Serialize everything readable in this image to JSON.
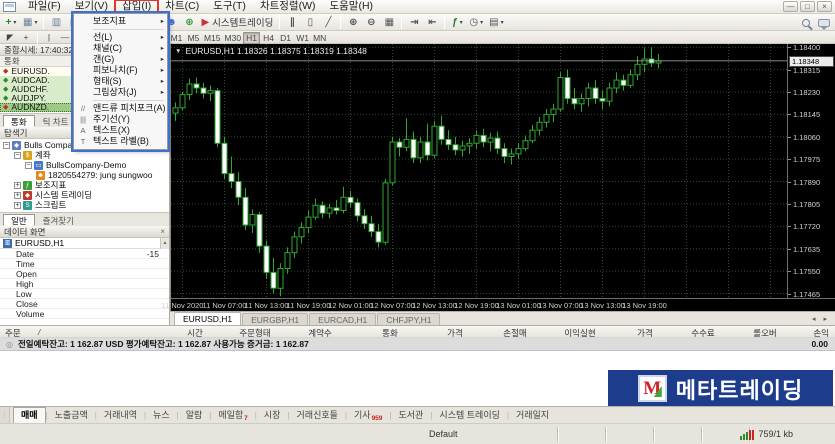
{
  "menu": {
    "items": [
      "파일(F)",
      "보기(V)",
      "삽입(I)",
      "차트(C)",
      "도구(T)",
      "차트정렬(W)",
      "도움말(H)"
    ],
    "annotated_item": 2,
    "window_controls": [
      "—",
      "□",
      "×"
    ]
  },
  "toolbar": {
    "left_icons": [
      {
        "name": "new-chart-button",
        "glyph": "+",
        "color": "#1f8f1f",
        "dd": true
      },
      {
        "name": "profiles-button",
        "glyph": "▦",
        "color": "#6b7f9e",
        "dd": true
      },
      {
        "sep": true
      },
      {
        "name": "market-watch-button",
        "glyph": "▥",
        "color": "#6b7f9e"
      },
      {
        "name": "data-window-button",
        "glyph": "◫",
        "color": "#6b7f9e"
      },
      {
        "name": "navigator-button",
        "glyph": "▤",
        "color": "#6b7f9e"
      },
      {
        "name": "terminal-button",
        "glyph": "▭",
        "color": "#6b7f9e"
      },
      {
        "name": "strategy-tester-button",
        "glyph": "▣",
        "color": "#6b7f9e"
      },
      {
        "name": "new-order-button",
        "glyph": "◆",
        "color": "#e8a01a"
      },
      {
        "sep": true
      },
      {
        "name": "expert-advisors-button",
        "glyph": "☻",
        "color": "#3b6fd4"
      },
      {
        "name": "web-terminal-button",
        "glyph": "⊕",
        "color": "#3a9e3a"
      },
      {
        "name": "autotrading-button",
        "glyph": "▶",
        "color": "#cc3333",
        "label": "시스템트레이딩"
      },
      {
        "sep": true
      },
      {
        "name": "bar-chart-button",
        "glyph": "∥",
        "color": "#555555"
      },
      {
        "name": "candlestick-button",
        "glyph": "▯",
        "color": "#555555"
      },
      {
        "name": "line-chart-button",
        "glyph": "╱",
        "color": "#555555"
      },
      {
        "sep": true
      },
      {
        "name": "zoom-in-button",
        "glyph": "⊕",
        "color": "#555555"
      },
      {
        "name": "zoom-out-button",
        "glyph": "⊖",
        "color": "#555555"
      },
      {
        "name": "tile-windows-button",
        "glyph": "▦",
        "color": "#555555"
      },
      {
        "sep": true
      },
      {
        "name": "auto-scroll-button",
        "glyph": "⇥",
        "color": "#555555"
      },
      {
        "name": "chart-shift-button",
        "glyph": "⇤",
        "color": "#555555"
      },
      {
        "sep": true
      },
      {
        "name": "indicators-button",
        "glyph": "ƒ",
        "color": "#2e7d32",
        "dd": true
      },
      {
        "name": "periods-button",
        "glyph": "◷",
        "color": "#555555",
        "dd": true
      },
      {
        "name": "templates-button",
        "glyph": "▤",
        "color": "#555555",
        "dd": true
      }
    ]
  },
  "line_tools": [
    {
      "name": "cursor-tool-button",
      "glyph": "◤"
    },
    {
      "name": "crosshair-tool-button",
      "glyph": "+"
    },
    {
      "sep": true
    },
    {
      "name": "vertical-line-button",
      "glyph": "|"
    },
    {
      "name": "horizontal-line-button",
      "glyph": "—"
    },
    {
      "name": "trendline-button",
      "glyph": "╱"
    },
    {
      "name": "channel-button",
      "glyph": "∥"
    }
  ],
  "timeframes": {
    "buttons": [
      "M1",
      "M5",
      "M15",
      "M30",
      "H1",
      "H4",
      "D1",
      "W1",
      "MN"
    ],
    "active": "H1"
  },
  "insert_menu": {
    "items": [
      {
        "label": "보조지표",
        "submenu": true
      },
      {
        "sep": true
      },
      {
        "label": "선(L)",
        "submenu": true
      },
      {
        "label": "채널(C)",
        "submenu": true
      },
      {
        "label": "갠(G)",
        "submenu": true
      },
      {
        "label": "피보나치(F)",
        "submenu": true
      },
      {
        "label": "형태(S)",
        "submenu": true
      },
      {
        "label": "그림상자(J)",
        "submenu": true
      },
      {
        "sep": true
      },
      {
        "label": "앤드류 피치포크(A)",
        "icon": "pitchfork-icon",
        "glyph": "//"
      },
      {
        "label": "주기선(Y)",
        "icon": "cycle-lines-icon",
        "glyph": "|||"
      },
      {
        "label": "텍스트(X)",
        "icon": "text-icon",
        "glyph": "A"
      },
      {
        "label": "텍스트 라벨(B)",
        "icon": "text-label-icon",
        "glyph": "T"
      }
    ]
  },
  "market_watch": {
    "title": "종합시세: 17:40:32",
    "column_header": "통화",
    "symbols": [
      {
        "name": "EURUSD.",
        "trend": "down",
        "row": "light"
      },
      {
        "name": "AUDCAD.",
        "trend": "up",
        "row": "green"
      },
      {
        "name": "AUDCHF.",
        "trend": "up",
        "row": "green"
      },
      {
        "name": "AUDJPY.",
        "trend": "up",
        "row": "green"
      },
      {
        "name": "AUDNZD.",
        "trend": "down",
        "row": "selected"
      }
    ],
    "tabs": [
      {
        "label": "통화",
        "active": true
      },
      {
        "label": "틱 차트",
        "active": false
      }
    ]
  },
  "navigator": {
    "title": "탐색기",
    "tree": [
      {
        "label": "Bulls Company MT4",
        "depth": 0,
        "expand": "−",
        "icon": "broker-icon",
        "glyph": "◆",
        "color": "#5b7fbf"
      },
      {
        "label": "계좌",
        "depth": 1,
        "expand": "−",
        "icon": "accounts-icon",
        "glyph": "$",
        "color": "#d8a21a"
      },
      {
        "label": "BullsCompany-Demo",
        "depth": 2,
        "expand": "−",
        "icon": "server-icon",
        "glyph": "▭",
        "color": "#4a78c8"
      },
      {
        "label": "1820554279: jung sungwoo",
        "depth": 3,
        "expand": "",
        "icon": "account-user-icon",
        "glyph": "☻",
        "color": "#e8871e"
      },
      {
        "label": "보조지표",
        "depth": 1,
        "expand": "+",
        "icon": "indicators-icon",
        "glyph": "ƒ",
        "color": "#3a9e3a"
      },
      {
        "label": "시스템 트레이딩",
        "depth": 1,
        "expand": "+",
        "icon": "expert-advisors-icon",
        "glyph": "◆",
        "color": "#c0392b"
      },
      {
        "label": "스크립트",
        "depth": 1,
        "expand": "+",
        "icon": "scripts-icon",
        "glyph": "S",
        "color": "#2a9d8f"
      }
    ],
    "tabs": [
      {
        "label": "일반",
        "active": true
      },
      {
        "label": "즐겨찾기",
        "active": false
      }
    ]
  },
  "data_window": {
    "title": "데이터 화면",
    "symbol": "EURUSD,H1",
    "rows": [
      {
        "label": "Date",
        "value": "-15"
      },
      {
        "label": "Time",
        "value": ""
      },
      {
        "label": "Open",
        "value": ""
      },
      {
        "label": "High",
        "value": ""
      },
      {
        "label": "Low",
        "value": ""
      },
      {
        "label": "Close",
        "value": ""
      },
      {
        "label": "Volume",
        "value": ""
      }
    ]
  },
  "chart_tabs": {
    "tabs": [
      {
        "label": "EURUSD,H1",
        "active": true
      },
      {
        "label": "EURGBP,H1",
        "active": false
      },
      {
        "label": "EURCAD,H1",
        "active": false
      },
      {
        "label": "CHFJPY,H1",
        "active": false
      }
    ],
    "scroll_arrows": "◂ ▸"
  },
  "orders": {
    "title": "주문",
    "sort_glyph": "/",
    "columns": [
      "시간",
      "주문형태",
      "계약수",
      "통화",
      "가격",
      "손절매",
      "이익실현",
      "가격",
      "수수료",
      "롤오버",
      "손익"
    ],
    "balance_icon": "◎",
    "balance_text": "전일예탁잔고: 1 162.87 USD   평가예탁잔고: 1 162.87   사용가능 증거금: 1 162.87",
    "profit_total": "0.00"
  },
  "logo": {
    "monogram": "M",
    "text": "메타트레이딩"
  },
  "bottom_tabs": {
    "tabs": [
      {
        "label": "매매",
        "active": true
      },
      {
        "label": "노출금액"
      },
      {
        "label": "거래내역"
      },
      {
        "label": "뉴스"
      },
      {
        "label": "알람"
      },
      {
        "label": "메일함",
        "badge": "7"
      },
      {
        "label": "시장"
      },
      {
        "label": "거래신호들"
      },
      {
        "label": "기사",
        "badge": "959"
      },
      {
        "label": "도서관"
      },
      {
        "label": "시스템 트레이딩"
      },
      {
        "label": "거래일지"
      }
    ]
  },
  "status_bar": {
    "profile": "Default",
    "empty_cells": 4,
    "connection": "759/1 kb"
  },
  "chart_data": {
    "type": "candlestick",
    "title": "EURUSD,H1",
    "quote": {
      "symbol_period": "EURUSD,H1",
      "open": "1.18326",
      "high": "1.18375",
      "low": "1.18319",
      "close": "1.18348"
    },
    "current_price": 1.18348,
    "ylim": [
      1.17448,
      1.18412
    ],
    "y_ticks": [
      "1.18400",
      "1.18315",
      "1.18230",
      "1.18145",
      "1.18060",
      "1.17975",
      "1.17890",
      "1.17805",
      "1.17720",
      "1.17635",
      "1.17550",
      "1.17465"
    ],
    "x_tick_labels": [
      "11 Nov 2020",
      "11 Nov 07:00",
      "11 Nov 13:00",
      "11 Nov 19:00",
      "12 Nov 01:00",
      "12 Nov 07:00",
      "12 Nov 13:00",
      "12 Nov 19:00",
      "13 Nov 01:00",
      "13 Nov 07:00",
      "13 Nov 13:00",
      "13 Nov 19:00"
    ],
    "x_tick_candle_indices": [
      1,
      7,
      13,
      19,
      25,
      31,
      37,
      43,
      49,
      55,
      61,
      67
    ],
    "colors": {
      "bg": "#000000",
      "grid": "#2c4a2c",
      "up_border": "#2fa92f",
      "down_fill": "#ffffff",
      "price_line": "#b8b8b8"
    },
    "candles": [
      [
        1.1815,
        1.1819,
        1.1812,
        1.1817
      ],
      [
        1.1817,
        1.1823,
        1.1816,
        1.1822
      ],
      [
        1.1822,
        1.1828,
        1.182,
        1.1826
      ],
      [
        1.1826,
        1.18285,
        1.18225,
        1.18245
      ],
      [
        1.18245,
        1.18265,
        1.18205,
        1.18225
      ],
      [
        1.18225,
        1.18255,
        1.18195,
        1.18235
      ],
      [
        1.18235,
        1.18245,
        1.1802,
        1.18035
      ],
      [
        1.18035,
        1.1806,
        1.179,
        1.1792
      ],
      [
        1.1792,
        1.17985,
        1.17865,
        1.1789
      ],
      [
        1.1789,
        1.17925,
        1.178,
        1.1783
      ],
      [
        1.1783,
        1.17865,
        1.17705,
        1.17725
      ],
      [
        1.17725,
        1.17785,
        1.17695,
        1.17765
      ],
      [
        1.17765,
        1.17775,
        1.1762,
        1.17645
      ],
      [
        1.17645,
        1.17665,
        1.1752,
        1.17545
      ],
      [
        1.17545,
        1.176,
        1.17465,
        1.17485
      ],
      [
        1.17485,
        1.1758,
        1.17455,
        1.1756
      ],
      [
        1.1756,
        1.1764,
        1.1754,
        1.1762
      ],
      [
        1.1762,
        1.177,
        1.176,
        1.1768
      ],
      [
        1.1768,
        1.17735,
        1.17655,
        1.17715
      ],
      [
        1.17715,
        1.1778,
        1.17695,
        1.17755
      ],
      [
        1.17755,
        1.17825,
        1.17745,
        1.178
      ],
      [
        1.178,
        1.17815,
        1.1775,
        1.1777
      ],
      [
        1.1777,
        1.17805,
        1.1775,
        1.1779
      ],
      [
        1.1779,
        1.1782,
        1.17765,
        1.1778
      ],
      [
        1.1778,
        1.1787,
        1.1777,
        1.1783
      ],
      [
        1.1783,
        1.17855,
        1.1779,
        1.1781
      ],
      [
        1.1781,
        1.17825,
        1.1774,
        1.1776
      ],
      [
        1.1776,
        1.17785,
        1.1771,
        1.1773
      ],
      [
        1.1773,
        1.1776,
        1.1768,
        1.177
      ],
      [
        1.177,
        1.1773,
        1.1764,
        1.1766
      ],
      [
        1.1766,
        1.179,
        1.1765,
        1.17885
      ],
      [
        1.17885,
        1.1806,
        1.17875,
        1.1804
      ],
      [
        1.1804,
        1.18055,
        1.17985,
        1.1802
      ],
      [
        1.1802,
        1.1813,
        1.18005,
        1.1805
      ],
      [
        1.1805,
        1.1808,
        1.1796,
        1.1798
      ],
      [
        1.1798,
        1.1806,
        1.1796,
        1.1804
      ],
      [
        1.1804,
        1.1811,
        1.1797,
        1.1799
      ],
      [
        1.1799,
        1.1812,
        1.1798,
        1.181
      ],
      [
        1.181,
        1.1814,
        1.1803,
        1.1805
      ],
      [
        1.1805,
        1.18085,
        1.1801,
        1.1803
      ],
      [
        1.1803,
        1.1806,
        1.1799,
        1.1801
      ],
      [
        1.1801,
        1.18045,
        1.17985,
        1.18025
      ],
      [
        1.18025,
        1.18055,
        1.17995,
        1.18035
      ],
      [
        1.18035,
        1.18085,
        1.18015,
        1.18065
      ],
      [
        1.18065,
        1.1809,
        1.1802,
        1.1804
      ],
      [
        1.1804,
        1.18075,
        1.18005,
        1.18055
      ],
      [
        1.18055,
        1.1808,
        1.17995,
        1.18015
      ],
      [
        1.18015,
        1.18035,
        1.1796,
        1.17985
      ],
      [
        1.17985,
        1.18015,
        1.17955,
        1.17995
      ],
      [
        1.17995,
        1.18035,
        1.17975,
        1.18015
      ],
      [
        1.18015,
        1.18065,
        1.18005,
        1.18045
      ],
      [
        1.18045,
        1.18105,
        1.18035,
        1.18085
      ],
      [
        1.18085,
        1.18135,
        1.18065,
        1.18115
      ],
      [
        1.18115,
        1.18165,
        1.18095,
        1.18145
      ],
      [
        1.18145,
        1.18185,
        1.18115,
        1.18165
      ],
      [
        1.18165,
        1.18305,
        1.18155,
        1.18285
      ],
      [
        1.18285,
        1.18315,
        1.18185,
        1.18205
      ],
      [
        1.18205,
        1.18245,
        1.18165,
        1.18185
      ],
      [
        1.18185,
        1.18225,
        1.18155,
        1.18205
      ],
      [
        1.18205,
        1.18265,
        1.18175,
        1.18245
      ],
      [
        1.18245,
        1.18275,
        1.18185,
        1.18205
      ],
      [
        1.18205,
        1.18235,
        1.18165,
        1.18195
      ],
      [
        1.18195,
        1.18265,
        1.18175,
        1.18245
      ],
      [
        1.18245,
        1.18305,
        1.18225,
        1.18275
      ],
      [
        1.18275,
        1.18295,
        1.18235,
        1.18255
      ],
      [
        1.18255,
        1.18315,
        1.18245,
        1.18295
      ],
      [
        1.18295,
        1.18365,
        1.18275,
        1.18335
      ],
      [
        1.18335,
        1.18395,
        1.18305,
        1.18355
      ],
      [
        1.18355,
        1.184,
        1.18325,
        1.1834
      ],
      [
        1.1834,
        1.18375,
        1.18319,
        1.18348
      ]
    ]
  }
}
